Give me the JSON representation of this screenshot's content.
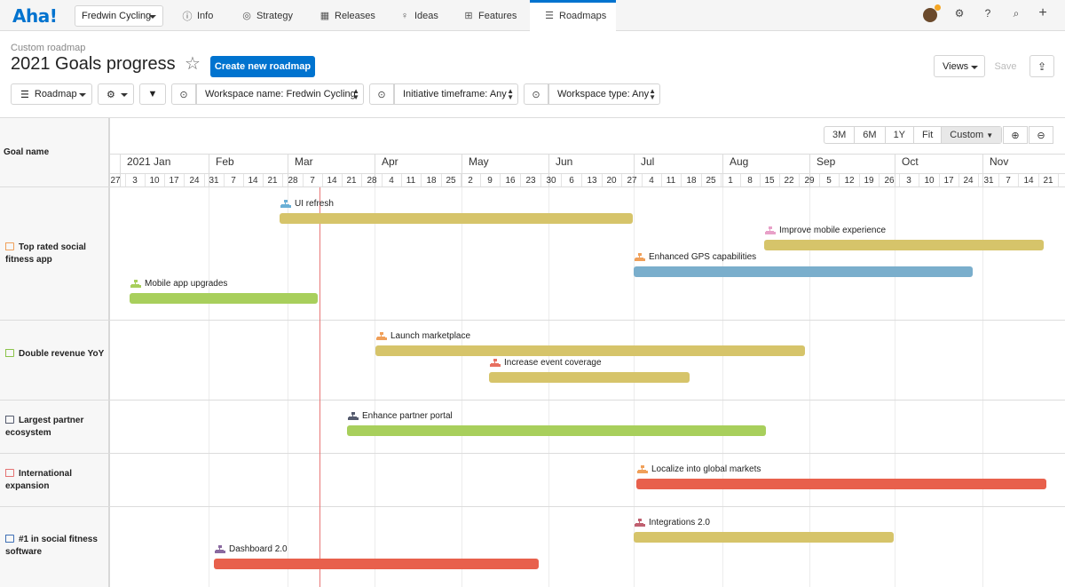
{
  "app": {
    "logo": "Aha!"
  },
  "nav": {
    "workspace": "Fredwin Cycling",
    "tabs": [
      {
        "label": "Info",
        "icon": "info-icon"
      },
      {
        "label": "Strategy",
        "icon": "target-icon"
      },
      {
        "label": "Releases",
        "icon": "calendar-icon"
      },
      {
        "label": "Ideas",
        "icon": "lightbulb-icon"
      },
      {
        "label": "Features",
        "icon": "grid-icon"
      },
      {
        "label": "Roadmaps",
        "icon": "roadmap-icon",
        "active": true
      }
    ]
  },
  "header": {
    "subtitle": "Custom roadmap",
    "title": "2021 Goals progress",
    "create_button": "Create new roadmap",
    "views_button": "Views",
    "save_button": "Save"
  },
  "filters": {
    "view_select": "Roadmap",
    "workspace_filter": "Workspace name: Fredwin Cycling",
    "timeframe_filter": "Initiative timeframe: Any",
    "type_filter": "Workspace type: Any"
  },
  "zoom": {
    "options": [
      "3M",
      "6M",
      "1Y",
      "Fit",
      "Custom"
    ],
    "selected": "Custom"
  },
  "timeline": {
    "months": [
      "2021 Jan",
      "Feb",
      "Mar",
      "Apr",
      "May",
      "Jun",
      "Jul",
      "Aug",
      "Sep",
      "Oct",
      "Nov"
    ],
    "days": [
      "27",
      "3",
      "10",
      "17",
      "24",
      "31",
      "7",
      "14",
      "21",
      "28",
      "7",
      "14",
      "21",
      "28",
      "4",
      "11",
      "18",
      "25",
      "2",
      "9",
      "16",
      "23",
      "30",
      "6",
      "13",
      "20",
      "27",
      "4",
      "11",
      "18",
      "25",
      "1",
      "8",
      "15",
      "22",
      "29",
      "5",
      "12",
      "19",
      "26",
      "3",
      "10",
      "17",
      "24",
      "31",
      "7",
      "14",
      "21"
    ]
  },
  "gantt": {
    "column_header": "Goal name",
    "goals": [
      {
        "name": "Top rated social fitness app",
        "color": "#f0a05a"
      },
      {
        "name": "Double revenue YoY",
        "color": "#8bc34a"
      },
      {
        "name": "Largest partner ecosystem",
        "color": "#555b6e"
      },
      {
        "name": "International expansion",
        "color": "#e57373"
      },
      {
        "name": "#1 in social fitness software",
        "color": "#3f6fb5"
      }
    ],
    "initiatives": [
      {
        "label": "UI refresh",
        "color": "#d6c46a",
        "icon_color": "#6ab0d6"
      },
      {
        "label": "Improve mobile experience",
        "color": "#d6c46a",
        "icon_color": "#e8a0c8"
      },
      {
        "label": "Enhanced GPS capabilities",
        "color": "#7aaecc",
        "icon_color": "#f0a05a"
      },
      {
        "label": "Mobile app upgrades",
        "color": "#a8cf5c",
        "icon_color": "#a8cf5c"
      },
      {
        "label": "Launch marketplace",
        "color": "#d6c46a",
        "icon_color": "#f0a05a"
      },
      {
        "label": "Increase event coverage",
        "color": "#d6c46a",
        "icon_color": "#e87060"
      },
      {
        "label": "Enhance partner portal",
        "color": "#a8cf5c",
        "icon_color": "#555b6e"
      },
      {
        "label": "Localize into global markets",
        "color": "#e8604c",
        "icon_color": "#f0a05a"
      },
      {
        "label": "Integrations 2.0",
        "color": "#d6c46a",
        "icon_color": "#c06070"
      },
      {
        "label": "Dashboard 2.0",
        "color": "#e8604c",
        "icon_color": "#8a6aa0"
      }
    ]
  }
}
